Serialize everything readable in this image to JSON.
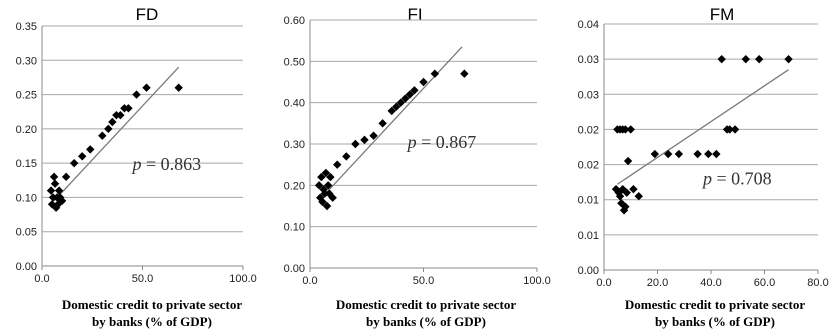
{
  "chart_data": [
    {
      "type": "scatter",
      "title": "FD",
      "xlabel": [
        "Domestic credit to private sector",
        "by banks (% of GDP)"
      ],
      "xticks": [
        "0.0",
        "50.0",
        "100.0"
      ],
      "xtick_values": [
        0,
        50,
        100
      ],
      "xlim": [
        0,
        100
      ],
      "yticks": [
        "0.00",
        "0.05",
        "0.10",
        "0.15",
        "0.20",
        "0.25",
        "0.30",
        "0.35"
      ],
      "ytick_values": [
        0,
        0.05,
        0.1,
        0.15,
        0.2,
        0.25,
        0.3,
        0.35
      ],
      "ylim": [
        0,
        0.35
      ],
      "grid": "horizontal",
      "points": [
        [
          4.5,
          0.11
        ],
        [
          5,
          0.09
        ],
        [
          5.5,
          0.1
        ],
        [
          6,
          0.13
        ],
        [
          6.5,
          0.12
        ],
        [
          7,
          0.085
        ],
        [
          7.5,
          0.1
        ],
        [
          8,
          0.09
        ],
        [
          8.5,
          0.11
        ],
        [
          9,
          0.1
        ],
        [
          10,
          0.095
        ],
        [
          12,
          0.13
        ],
        [
          16,
          0.15
        ],
        [
          20,
          0.16
        ],
        [
          24,
          0.17
        ],
        [
          30,
          0.19
        ],
        [
          33,
          0.2
        ],
        [
          35,
          0.21
        ],
        [
          37,
          0.22
        ],
        [
          39,
          0.22
        ],
        [
          41,
          0.23
        ],
        [
          43,
          0.23
        ],
        [
          47,
          0.25
        ],
        [
          52,
          0.26
        ],
        [
          68,
          0.26
        ]
      ],
      "trendline": [
        [
          6,
          0.095
        ],
        [
          68,
          0.29
        ]
      ],
      "annotation": {
        "symbol": "p",
        "text": " = 0.863",
        "x": 45,
        "y": 0.14
      }
    },
    {
      "type": "scatter",
      "title": "FI",
      "xlabel": [
        "Domestic credit to private sector",
        "by banks (% of GDP)"
      ],
      "xticks": [
        "0.0",
        "50.0",
        "100.0"
      ],
      "xtick_values": [
        0,
        50,
        100
      ],
      "xlim": [
        0,
        100
      ],
      "yticks": [
        "0.00",
        "0.10",
        "0.20",
        "0.30",
        "0.40",
        "0.50",
        "0.60"
      ],
      "ytick_values": [
        0,
        0.1,
        0.2,
        0.3,
        0.4,
        0.5,
        0.6
      ],
      "ylim": [
        0,
        0.6
      ],
      "grid": "horizontal",
      "points": [
        [
          4,
          0.2
        ],
        [
          4.5,
          0.17
        ],
        [
          5,
          0.22
        ],
        [
          5.5,
          0.16
        ],
        [
          6,
          0.19
        ],
        [
          6.5,
          0.18
        ],
        [
          7,
          0.23
        ],
        [
          7.5,
          0.15
        ],
        [
          8,
          0.2
        ],
        [
          8.5,
          0.18
        ],
        [
          9,
          0.22
        ],
        [
          10,
          0.17
        ],
        [
          12,
          0.25
        ],
        [
          16,
          0.27
        ],
        [
          20,
          0.3
        ],
        [
          24,
          0.31
        ],
        [
          28,
          0.32
        ],
        [
          32,
          0.35
        ],
        [
          36,
          0.38
        ],
        [
          38,
          0.39
        ],
        [
          40,
          0.4
        ],
        [
          42,
          0.41
        ],
        [
          44,
          0.42
        ],
        [
          46,
          0.43
        ],
        [
          50,
          0.45
        ],
        [
          55,
          0.47
        ],
        [
          68,
          0.47
        ]
      ],
      "trendline": [
        [
          6,
          0.175
        ],
        [
          67,
          0.535
        ]
      ],
      "annotation": {
        "symbol": "p",
        "text": " = 0.867",
        "x": 43,
        "y": 0.29
      }
    },
    {
      "type": "scatter",
      "title": "FM",
      "xlabel": [
        "Domestic credit to private sector",
        "by banks (% of GDP)"
      ],
      "xticks": [
        "0.0",
        "20.0",
        "40.0",
        "60.0",
        "80.0"
      ],
      "xtick_values": [
        0,
        20,
        40,
        60,
        80
      ],
      "xlim": [
        0,
        80
      ],
      "yticks": [
        "0.00",
        "0.01",
        "0.01",
        "0.02",
        "0.02",
        "0.03",
        "0.03",
        "0.04"
      ],
      "ytick_values": [
        0,
        0.005,
        0.01,
        0.015,
        0.02,
        0.025,
        0.03,
        0.035
      ],
      "ylim": [
        0,
        0.035
      ],
      "grid": "horizontal",
      "points": [
        [
          5,
          0.02
        ],
        [
          6,
          0.02
        ],
        [
          7,
          0.02
        ],
        [
          8,
          0.02
        ],
        [
          10,
          0.02
        ],
        [
          4.5,
          0.0115
        ],
        [
          5.5,
          0.011
        ],
        [
          6,
          0.0105
        ],
        [
          6.5,
          0.0095
        ],
        [
          7,
          0.0115
        ],
        [
          7.5,
          0.0085
        ],
        [
          8,
          0.009
        ],
        [
          8.5,
          0.011
        ],
        [
          9,
          0.0155
        ],
        [
          11,
          0.0115
        ],
        [
          13,
          0.0105
        ],
        [
          19,
          0.0165
        ],
        [
          24,
          0.0165
        ],
        [
          28,
          0.0165
        ],
        [
          35,
          0.0165
        ],
        [
          39,
          0.0165
        ],
        [
          42,
          0.0165
        ],
        [
          44,
          0.03
        ],
        [
          46,
          0.02
        ],
        [
          47,
          0.02
        ],
        [
          49,
          0.02
        ],
        [
          53,
          0.03
        ],
        [
          58,
          0.03
        ],
        [
          69,
          0.03
        ]
      ],
      "trendline": [
        [
          5,
          0.0122
        ],
        [
          69,
          0.0285
        ]
      ],
      "annotation": {
        "symbol": "p",
        "text": " = 0.708",
        "x": 37,
        "y": 0.0122
      }
    }
  ]
}
